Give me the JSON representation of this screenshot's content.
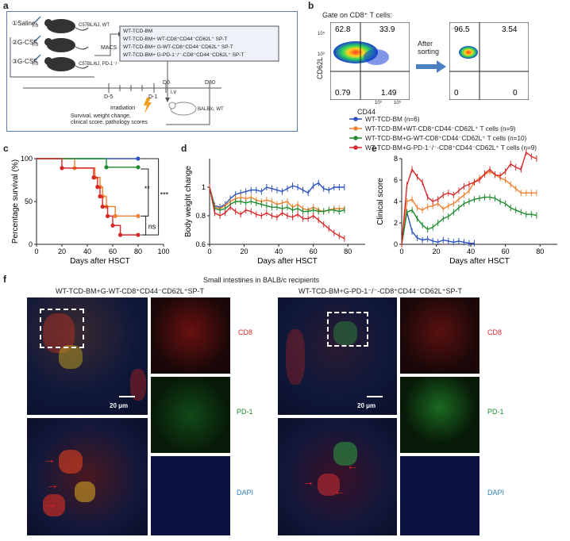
{
  "panel_a": {
    "label": "a",
    "groups": [
      "①Saline",
      "②G-CSF",
      "③G-CSF"
    ],
    "mouse_labels": [
      "C57BL/6J, WT",
      "C57BL/6J, PD-1⁻/⁻"
    ],
    "injection": "i.h",
    "macs": "MACS",
    "transplant_groups": [
      "WT-TCD-BM",
      "WT-TCD-BM+ WT-CD8⁺CD44⁻CD62L⁺ SP-T",
      "WT-TCD-BM+ G-WT-CD8⁺CD44⁻CD62L⁺ SP-T",
      "WT-TCD-BM+ G-PD-1⁻/⁻-CD8⁺CD44⁻CD62L⁺ SP-T"
    ],
    "timeline": [
      "D-5",
      "D-1",
      "D0",
      "D80"
    ],
    "irradiation": "Irradiation",
    "iv": "i.v",
    "recipient": "BALB/c, WT",
    "readout": "Survival, weight change,\nclinical score, pathology scores"
  },
  "panel_b": {
    "label": "b",
    "gate": "Gate on CD8⁺ T cells:",
    "after": "After\nsorting",
    "ylabel": "CD62L",
    "xlabel": "CD44",
    "left_quadrants": [
      "62.8",
      "33.9",
      "0.79",
      "1.49"
    ],
    "right_quadrants": [
      "96.5",
      "3.54",
      "0",
      "0"
    ],
    "yticks": [
      "10⁵",
      "10³"
    ],
    "xticks": [
      "10³",
      "10⁵"
    ]
  },
  "legend": [
    {
      "name": "WT-TCD-BM (n=6)",
      "color": "#2a52be"
    },
    {
      "name": "WT-TCD-BM+WT-CD8⁺CD44⁻CD62L⁺ T cells (n=9)",
      "color": "#f08030"
    },
    {
      "name": "WT-TCD-BM+G-WT-CD8⁺CD44⁻CD62L⁺ T cells (n=10)",
      "color": "#1e8a2e"
    },
    {
      "name": "WT-TCD-BM+G-PD-1⁻/⁻-CD8⁺CD44⁻CD62L⁺ T cells (n=9)",
      "color": "#d62828"
    }
  ],
  "chart_data": [
    {
      "type": "line",
      "panel": "c",
      "xlabel": "Days after HSCT",
      "ylabel": "Percentage survival (%)",
      "xlim": [
        0,
        100
      ],
      "ylim": [
        0,
        100
      ],
      "xticks": [
        0,
        20,
        40,
        60,
        80,
        100
      ],
      "yticks": [
        0,
        50,
        100
      ],
      "series": [
        {
          "name": "WT-TCD-BM",
          "color": "#2a52be",
          "points": [
            [
              0,
              100
            ],
            [
              80,
              100
            ]
          ]
        },
        {
          "name": "WT-TCD-BM+WT-CD8",
          "color": "#f08030",
          "points": [
            [
              0,
              100
            ],
            [
              30,
              100
            ],
            [
              30,
              89
            ],
            [
              46,
              89
            ],
            [
              46,
              78
            ],
            [
              50,
              78
            ],
            [
              50,
              67
            ],
            [
              52,
              67
            ],
            [
              52,
              56
            ],
            [
              55,
              56
            ],
            [
              55,
              44
            ],
            [
              62,
              44
            ],
            [
              62,
              33
            ],
            [
              80,
              33
            ]
          ]
        },
        {
          "name": "WT-TCD-BM+G-WT-CD8",
          "color": "#1e8a2e",
          "points": [
            [
              0,
              100
            ],
            [
              55,
              100
            ],
            [
              55,
              90
            ],
            [
              80,
              90
            ]
          ]
        },
        {
          "name": "WT-TCD-BM+G-PD-1",
          "color": "#d62828",
          "points": [
            [
              0,
              100
            ],
            [
              20,
              100
            ],
            [
              20,
              89
            ],
            [
              45,
              89
            ],
            [
              45,
              78
            ],
            [
              48,
              78
            ],
            [
              48,
              67
            ],
            [
              50,
              67
            ],
            [
              50,
              56
            ],
            [
              52,
              56
            ],
            [
              52,
              44
            ],
            [
              56,
              44
            ],
            [
              56,
              33
            ],
            [
              60,
              33
            ],
            [
              60,
              22
            ],
            [
              66,
              22
            ],
            [
              66,
              11
            ],
            [
              80,
              11
            ]
          ]
        }
      ],
      "annotations": [
        "**",
        "***",
        "ns"
      ]
    },
    {
      "type": "line",
      "panel": "d",
      "xlabel": "Days after HSCT",
      "ylabel": "Body weight change",
      "xlim": [
        0,
        90
      ],
      "ylim": [
        0.6,
        1.2
      ],
      "xticks": [
        0,
        20,
        40,
        60,
        80
      ],
      "yticks": [
        0.6,
        0.8,
        1.0
      ],
      "series": [
        {
          "name": "WT-TCD-BM",
          "color": "#2a52be",
          "x": [
            0,
            3,
            6,
            9,
            12,
            15,
            18,
            21,
            24,
            27,
            30,
            33,
            36,
            39,
            42,
            45,
            48,
            51,
            54,
            57,
            60,
            63,
            66,
            69,
            72,
            75,
            78
          ],
          "y": [
            1.0,
            0.87,
            0.86,
            0.88,
            0.92,
            0.95,
            0.96,
            0.97,
            0.98,
            0.98,
            0.97,
            1.0,
            0.99,
            0.98,
            0.97,
            0.99,
            1.01,
            1.0,
            0.98,
            0.96,
            1.01,
            1.03,
            0.99,
            0.98,
            1.0,
            1.0,
            1.0
          ]
        },
        {
          "name": "WT-TCD-BM+WT-CD8",
          "color": "#f08030",
          "x": [
            0,
            3,
            6,
            9,
            12,
            15,
            18,
            21,
            24,
            27,
            30,
            33,
            36,
            39,
            42,
            45,
            48,
            51,
            54,
            57,
            60,
            63,
            66,
            69,
            72,
            75,
            78
          ],
          "y": [
            1.0,
            0.86,
            0.85,
            0.87,
            0.9,
            0.92,
            0.93,
            0.92,
            0.93,
            0.91,
            0.9,
            0.91,
            0.9,
            0.88,
            0.89,
            0.9,
            0.86,
            0.88,
            0.85,
            0.84,
            0.86,
            0.84,
            0.83,
            0.84,
            0.85,
            0.85,
            0.85
          ]
        },
        {
          "name": "WT-TCD-BM+G-WT-CD8",
          "color": "#1e8a2e",
          "x": [
            0,
            3,
            6,
            9,
            12,
            15,
            18,
            21,
            24,
            27,
            30,
            33,
            36,
            39,
            42,
            45,
            48,
            51,
            54,
            57,
            60,
            63,
            66,
            69,
            72,
            75,
            78
          ],
          "y": [
            1.0,
            0.85,
            0.84,
            0.85,
            0.88,
            0.9,
            0.9,
            0.89,
            0.9,
            0.89,
            0.88,
            0.87,
            0.86,
            0.86,
            0.85,
            0.86,
            0.84,
            0.85,
            0.83,
            0.83,
            0.84,
            0.83,
            0.83,
            0.84,
            0.84,
            0.83,
            0.84
          ]
        },
        {
          "name": "WT-TCD-BM+G-PD-1",
          "color": "#d62828",
          "x": [
            0,
            3,
            6,
            9,
            12,
            15,
            18,
            21,
            24,
            27,
            30,
            33,
            36,
            39,
            42,
            45,
            48,
            51,
            54,
            57,
            60,
            63,
            66,
            69,
            72,
            75,
            78
          ],
          "y": [
            1.0,
            0.82,
            0.8,
            0.82,
            0.86,
            0.83,
            0.81,
            0.84,
            0.83,
            0.81,
            0.8,
            0.82,
            0.8,
            0.79,
            0.82,
            0.8,
            0.79,
            0.81,
            0.78,
            0.78,
            0.8,
            0.77,
            0.74,
            0.71,
            0.68,
            0.66,
            0.64
          ]
        }
      ]
    },
    {
      "type": "line",
      "panel": "e",
      "xlabel": "Days after HSCT",
      "ylabel": "Clinical score",
      "xlim": [
        0,
        90
      ],
      "ylim": [
        0,
        8
      ],
      "xticks": [
        0,
        20,
        40,
        60,
        80
      ],
      "yticks": [
        0,
        2,
        4,
        6,
        8
      ],
      "series": [
        {
          "name": "WT-TCD-BM",
          "color": "#2a52be",
          "x": [
            0,
            3,
            6,
            9,
            12,
            15,
            18,
            21,
            24,
            27,
            30,
            33,
            36,
            39,
            42
          ],
          "y": [
            0,
            3.0,
            1.2,
            0.6,
            0.4,
            0.5,
            0.3,
            0.2,
            0.4,
            0.3,
            0.2,
            0.3,
            0.2,
            0.1,
            0.1
          ]
        },
        {
          "name": "WT-TCD-BM+WT-CD8",
          "color": "#f08030",
          "x": [
            0,
            3,
            6,
            9,
            12,
            15,
            18,
            21,
            24,
            27,
            30,
            33,
            36,
            39,
            42,
            45,
            48,
            51,
            54,
            57,
            60,
            63,
            66,
            69,
            72,
            75,
            78
          ],
          "y": [
            0,
            4.0,
            4.2,
            3.4,
            3.2,
            3.5,
            3.6,
            3.8,
            3.3,
            3.6,
            3.8,
            4.2,
            4.6,
            5.0,
            5.8,
            6.2,
            6.5,
            6.8,
            6.5,
            6.2,
            6.0,
            5.6,
            5.2,
            4.8,
            4.8,
            4.8,
            4.8
          ]
        },
        {
          "name": "WT-TCD-BM+G-WT-CD8",
          "color": "#1e8a2e",
          "x": [
            0,
            3,
            6,
            9,
            12,
            15,
            18,
            21,
            24,
            27,
            30,
            33,
            36,
            39,
            42,
            45,
            48,
            51,
            54,
            57,
            60,
            63,
            66,
            69,
            72,
            75,
            78
          ],
          "y": [
            0,
            3.0,
            3.2,
            2.4,
            1.8,
            1.4,
            1.6,
            2.0,
            2.4,
            2.6,
            3.0,
            3.4,
            3.8,
            4.0,
            4.2,
            4.3,
            4.4,
            4.4,
            4.3,
            4.0,
            3.8,
            3.4,
            3.2,
            3.0,
            2.8,
            2.8,
            2.7
          ]
        },
        {
          "name": "WT-TCD-BM+G-PD-1",
          "color": "#d62828",
          "x": [
            0,
            3,
            6,
            9,
            12,
            15,
            18,
            21,
            24,
            27,
            30,
            33,
            36,
            39,
            42,
            45,
            48,
            51,
            54,
            57,
            60,
            63,
            66,
            69,
            72,
            75,
            78
          ],
          "y": [
            0,
            5.5,
            7.0,
            6.3,
            5.8,
            4.4,
            4.0,
            4.2,
            4.6,
            4.8,
            4.6,
            5.0,
            5.4,
            5.6,
            5.8,
            6.0,
            6.6,
            7.0,
            6.5,
            6.4,
            6.8,
            7.5,
            7.2,
            7.0,
            8.6,
            8.2,
            8.0
          ]
        }
      ]
    }
  ],
  "panel_f": {
    "label": "f",
    "title": "Small intestines in BALB/c recipients",
    "left_title": "WT-TCD-BM+G-WT-CD8⁺CD44⁻CD62L⁺SP-T",
    "right_title": "WT-TCD-BM+G-PD-1⁻/⁻-CD8⁺CD44⁻CD62L⁺SP-T",
    "channels": [
      "CD8",
      "PD-1",
      "DAPI"
    ],
    "scale": "20 μm"
  }
}
